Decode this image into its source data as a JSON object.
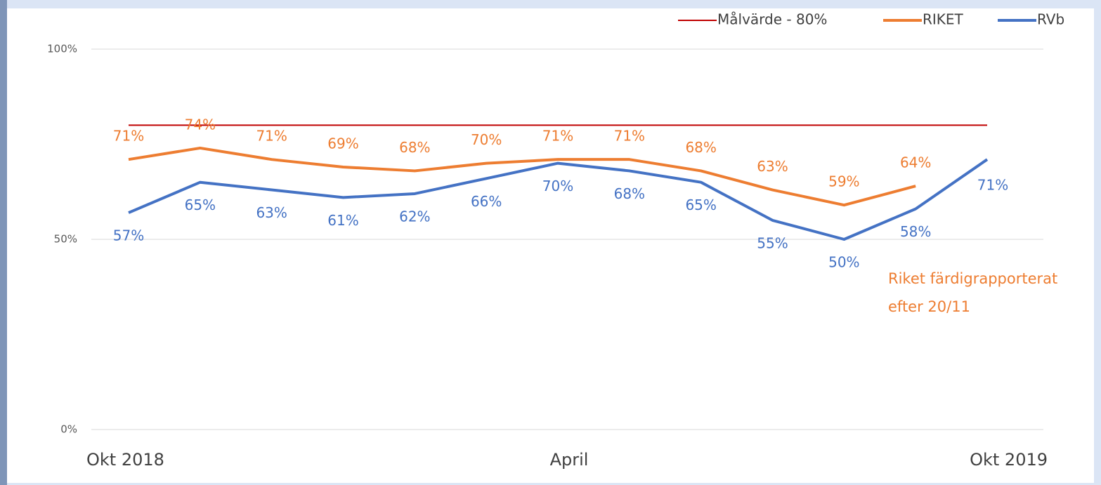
{
  "chart_data": {
    "type": "line",
    "categories": [
      "Okt 2018",
      null,
      null,
      null,
      null,
      null,
      "April",
      null,
      null,
      null,
      null,
      null,
      "Okt 2019"
    ],
    "series": [
      {
        "name": "Målvärde - 80%",
        "color": "#c00000",
        "values": [
          80,
          80,
          80,
          80,
          80,
          80,
          80,
          80,
          80,
          80,
          80,
          80,
          80
        ]
      },
      {
        "name": "RIKET",
        "color": "#ed7d31",
        "values": [
          71,
          74,
          71,
          69,
          68,
          70,
          71,
          71,
          68,
          63,
          59,
          64,
          null
        ],
        "value_labels": [
          "71%",
          "74%",
          "71%",
          "69%",
          "68%",
          "70%",
          "71%",
          "71%",
          "68%",
          "63%",
          "59%",
          "64%",
          null
        ]
      },
      {
        "name": "RVb",
        "color": "#4472c4",
        "values": [
          57,
          65,
          63,
          61,
          62,
          66,
          70,
          68,
          65,
          55,
          50,
          58,
          71
        ],
        "value_labels": [
          "57%",
          "65%",
          "63%",
          "61%",
          "62%",
          "66%",
          "70%",
          "68%",
          "65%",
          "55%",
          "50%",
          "58%",
          "71%"
        ]
      }
    ],
    "ylim": [
      0,
      100
    ],
    "yticks": [
      {
        "value": 0,
        "label": "0%"
      },
      {
        "value": 50,
        "label": "50%"
      },
      {
        "value": 100,
        "label": "100%"
      }
    ],
    "grid": true,
    "legend": "top-right",
    "annotation": [
      "Riket färdigrapporterat",
      "efter 20/11"
    ]
  }
}
